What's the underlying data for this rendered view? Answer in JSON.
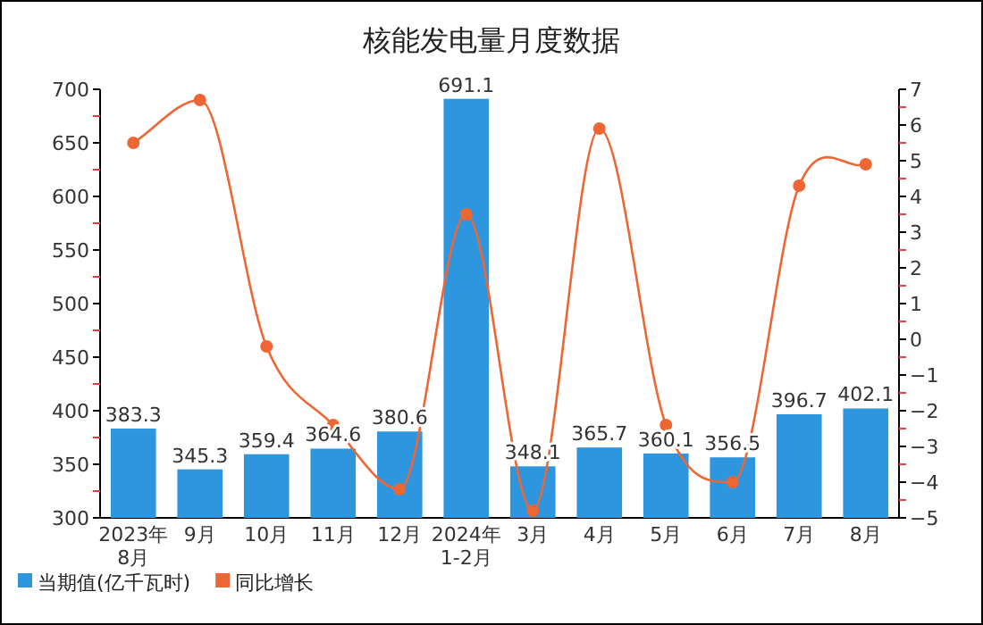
{
  "chart_data": {
    "type": "bar",
    "title": "核能发电量月度数据",
    "categories": [
      "2023年\n8月",
      "9月",
      "10月",
      "11月",
      "12月",
      "2024年\n1-2月",
      "3月",
      "4月",
      "5月",
      "6月",
      "7月",
      "8月"
    ],
    "series": [
      {
        "name": "当期值(亿千瓦时)",
        "color": "#2e96de",
        "values": [
          383.3,
          345.3,
          359.4,
          364.6,
          380.6,
          691.1,
          348.1,
          365.7,
          360.1,
          356.5,
          396.7,
          402.1
        ],
        "value_labels": [
          "383.3",
          "345.3",
          "359.4",
          "364.6",
          "380.6",
          "691.1",
          "348.1",
          "365.7",
          "360.1",
          "356.5",
          "396.7",
          "402.1"
        ]
      },
      {
        "name": "同比增长",
        "type": "line",
        "axis": "y2",
        "color": "#ee6633",
        "marker": "circle",
        "values": [
          5.5,
          6.7,
          -0.2,
          -2.4,
          -4.2,
          3.5,
          -4.8,
          5.9,
          -2.4,
          -4.0,
          4.3,
          4.9
        ]
      }
    ],
    "ylim": [
      300,
      700
    ],
    "yticks": [
      300,
      350,
      400,
      450,
      500,
      550,
      600,
      650,
      700
    ],
    "y2lim": [
      -5,
      7
    ],
    "y2ticks": [
      -5,
      -4,
      -3,
      -2,
      -1,
      0,
      1,
      2,
      3,
      4,
      5,
      6,
      7
    ],
    "legend": "bottom left",
    "grid": false
  }
}
